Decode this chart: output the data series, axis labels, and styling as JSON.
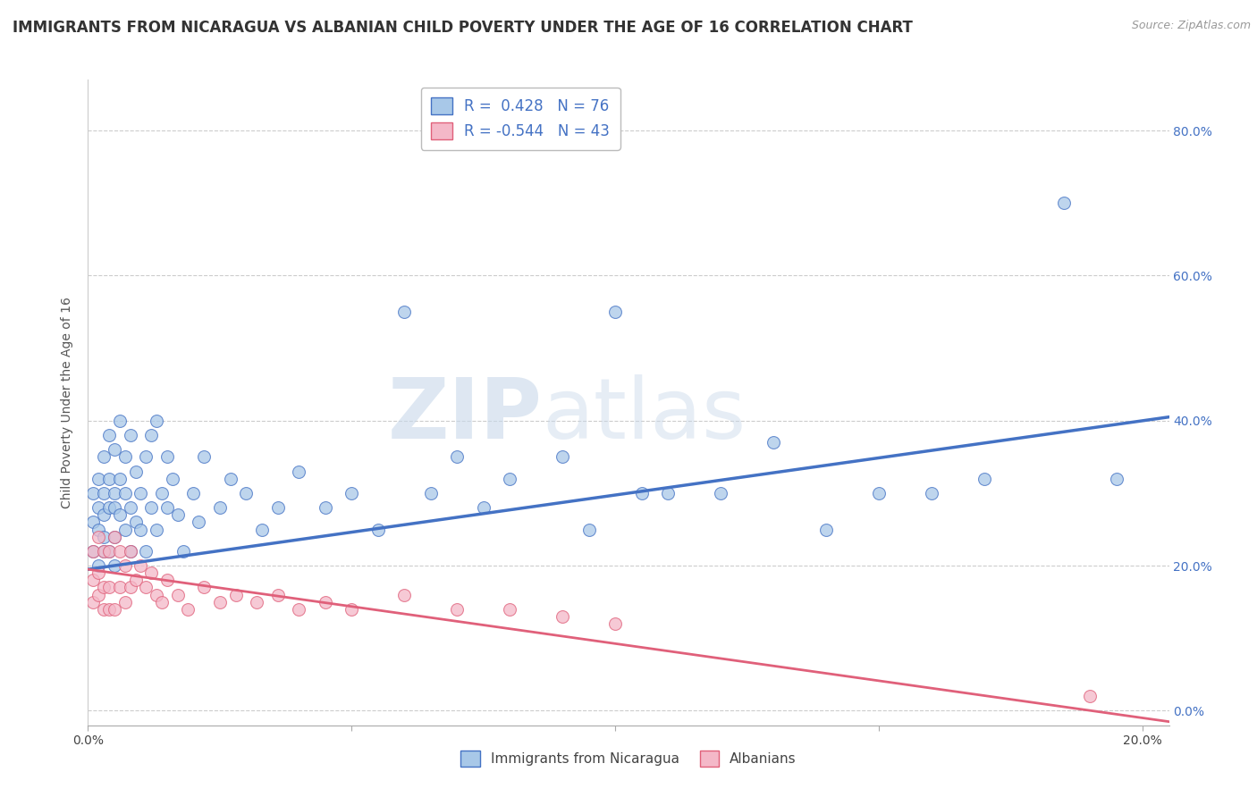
{
  "title": "IMMIGRANTS FROM NICARAGUA VS ALBANIAN CHILD POVERTY UNDER THE AGE OF 16 CORRELATION CHART",
  "source": "Source: ZipAtlas.com",
  "ylabel": "Child Poverty Under the Age of 16",
  "legend_label1": "Immigrants from Nicaragua",
  "legend_label2": "Albanians",
  "R1": 0.428,
  "N1": 76,
  "R2": -0.544,
  "N2": 43,
  "xmin": 0.0,
  "xmax": 0.205,
  "ymin": -0.02,
  "ymax": 0.87,
  "color1": "#a8c8e8",
  "color1_line": "#4472c4",
  "color2": "#f4b8c8",
  "color2_line": "#e0607a",
  "title_fontsize": 12,
  "axis_label_fontsize": 10,
  "tick_fontsize": 10,
  "background_color": "#ffffff",
  "watermark_zip": "ZIP",
  "watermark_atlas": "atlas",
  "yticks": [
    0.0,
    0.2,
    0.4,
    0.6,
    0.8
  ],
  "ytick_labels": [
    "0.0%",
    "20.0%",
    "40.0%",
    "60.0%",
    "80.0%"
  ],
  "xticks": [
    0.0,
    0.05,
    0.1,
    0.15,
    0.2
  ],
  "xtick_labels": [
    "0.0%",
    "",
    "",
    "",
    "20.0%"
  ],
  "blue_scatter_x": [
    0.001,
    0.001,
    0.001,
    0.002,
    0.002,
    0.002,
    0.002,
    0.003,
    0.003,
    0.003,
    0.003,
    0.003,
    0.004,
    0.004,
    0.004,
    0.004,
    0.005,
    0.005,
    0.005,
    0.005,
    0.005,
    0.006,
    0.006,
    0.006,
    0.007,
    0.007,
    0.007,
    0.008,
    0.008,
    0.008,
    0.009,
    0.009,
    0.01,
    0.01,
    0.011,
    0.011,
    0.012,
    0.012,
    0.013,
    0.013,
    0.014,
    0.015,
    0.015,
    0.016,
    0.017,
    0.018,
    0.02,
    0.021,
    0.022,
    0.025,
    0.027,
    0.03,
    0.033,
    0.036,
    0.04,
    0.045,
    0.05,
    0.055,
    0.06,
    0.065,
    0.07,
    0.075,
    0.08,
    0.09,
    0.095,
    0.1,
    0.105,
    0.11,
    0.12,
    0.13,
    0.14,
    0.15,
    0.16,
    0.17,
    0.185,
    0.195
  ],
  "blue_scatter_y": [
    0.26,
    0.22,
    0.3,
    0.32,
    0.25,
    0.2,
    0.28,
    0.27,
    0.22,
    0.35,
    0.3,
    0.24,
    0.38,
    0.22,
    0.28,
    0.32,
    0.36,
    0.24,
    0.28,
    0.2,
    0.3,
    0.4,
    0.27,
    0.32,
    0.35,
    0.25,
    0.3,
    0.38,
    0.22,
    0.28,
    0.33,
    0.26,
    0.3,
    0.25,
    0.35,
    0.22,
    0.38,
    0.28,
    0.4,
    0.25,
    0.3,
    0.35,
    0.28,
    0.32,
    0.27,
    0.22,
    0.3,
    0.26,
    0.35,
    0.28,
    0.32,
    0.3,
    0.25,
    0.28,
    0.33,
    0.28,
    0.3,
    0.25,
    0.55,
    0.3,
    0.35,
    0.28,
    0.32,
    0.35,
    0.25,
    0.55,
    0.3,
    0.3,
    0.3,
    0.37,
    0.25,
    0.3,
    0.3,
    0.32,
    0.7,
    0.32
  ],
  "pink_scatter_x": [
    0.001,
    0.001,
    0.001,
    0.002,
    0.002,
    0.002,
    0.003,
    0.003,
    0.003,
    0.004,
    0.004,
    0.004,
    0.005,
    0.005,
    0.006,
    0.006,
    0.007,
    0.007,
    0.008,
    0.008,
    0.009,
    0.01,
    0.011,
    0.012,
    0.013,
    0.014,
    0.015,
    0.017,
    0.019,
    0.022,
    0.025,
    0.028,
    0.032,
    0.036,
    0.04,
    0.045,
    0.05,
    0.06,
    0.07,
    0.08,
    0.09,
    0.1,
    0.19
  ],
  "pink_scatter_y": [
    0.22,
    0.18,
    0.15,
    0.24,
    0.19,
    0.16,
    0.22,
    0.17,
    0.14,
    0.22,
    0.17,
    0.14,
    0.24,
    0.14,
    0.22,
    0.17,
    0.2,
    0.15,
    0.22,
    0.17,
    0.18,
    0.2,
    0.17,
    0.19,
    0.16,
    0.15,
    0.18,
    0.16,
    0.14,
    0.17,
    0.15,
    0.16,
    0.15,
    0.16,
    0.14,
    0.15,
    0.14,
    0.16,
    0.14,
    0.14,
    0.13,
    0.12,
    0.02
  ]
}
